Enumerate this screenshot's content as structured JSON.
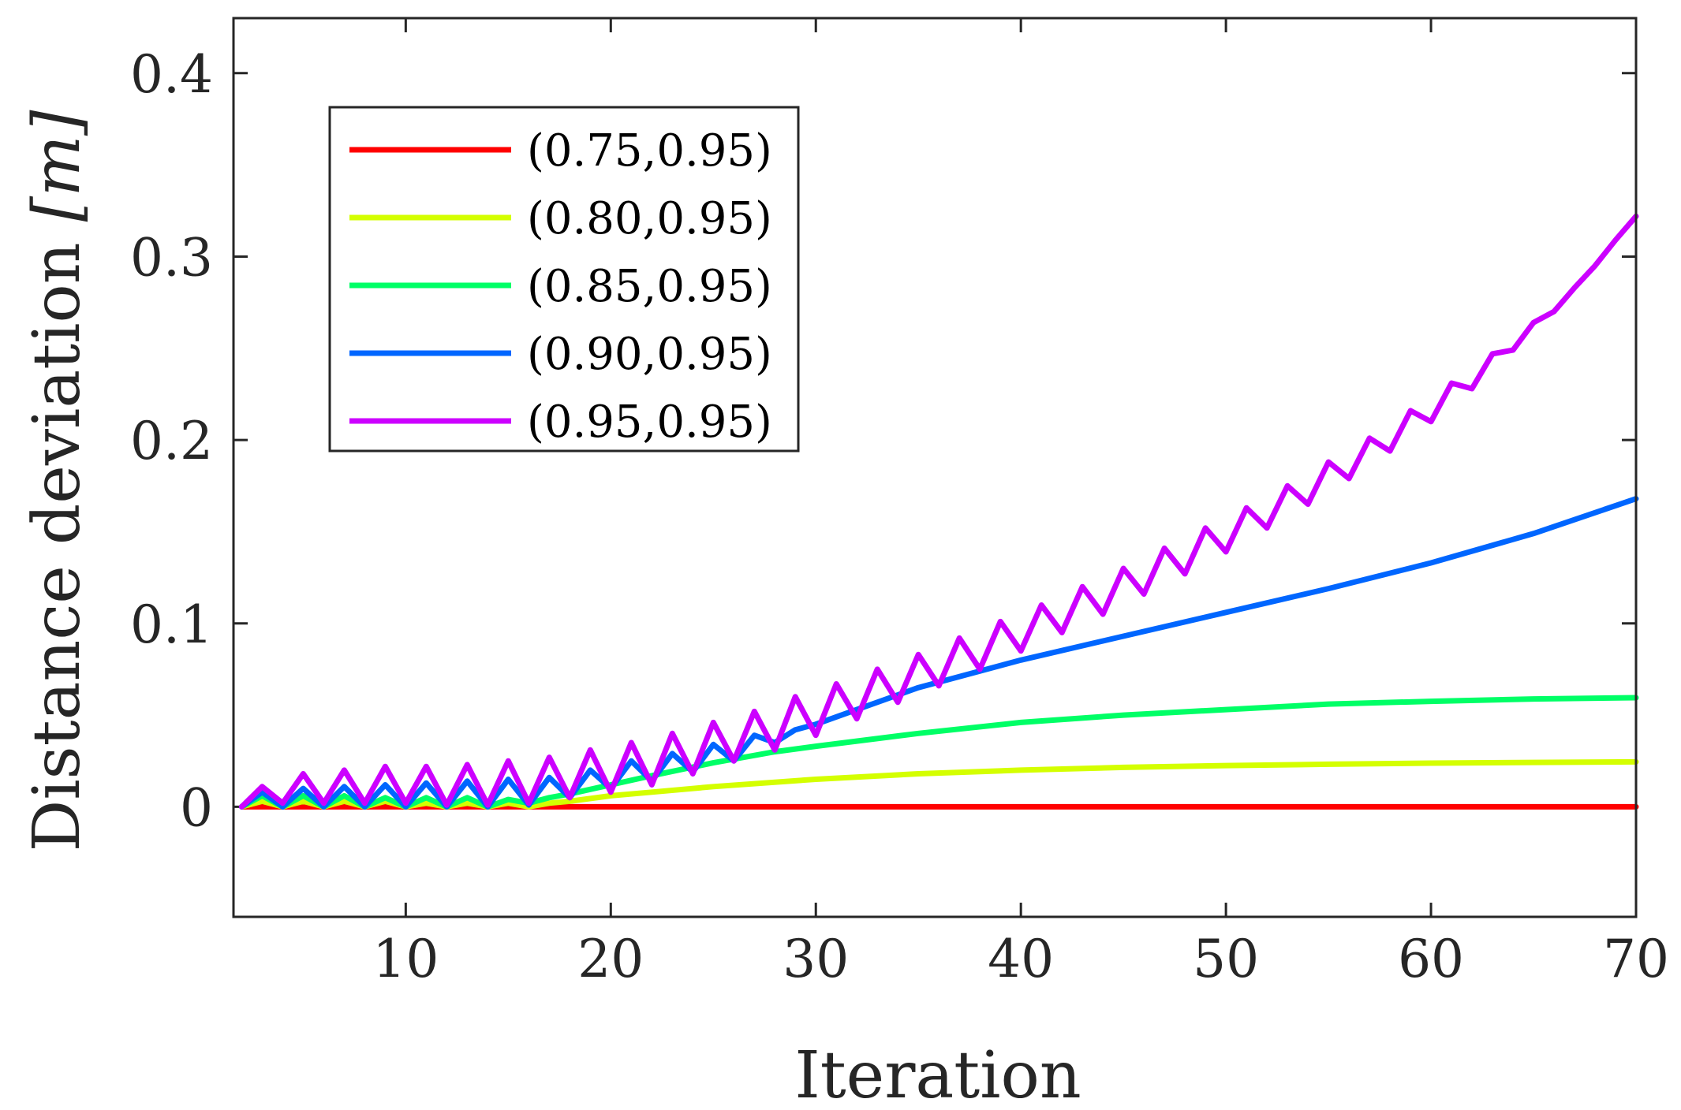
{
  "chart_data": {
    "type": "line",
    "xlabel": "Iteration",
    "ylabel": "Distance deviation [m]",
    "ylabel_main": "Distance deviation ",
    "ylabel_unit": "[m]",
    "xlim": [
      1.6,
      70
    ],
    "ylim": [
      -0.06,
      0.43
    ],
    "xticks": [
      10,
      20,
      30,
      40,
      50,
      60,
      70
    ],
    "xtick_labels": [
      "10",
      "20",
      "30",
      "40",
      "50",
      "60",
      "70"
    ],
    "yticks": [
      0,
      0.1,
      0.2,
      0.3,
      0.4
    ],
    "ytick_labels": [
      "0",
      "0.1",
      "0.2",
      "0.3",
      "0.4"
    ],
    "legend_position": "top-left",
    "series": [
      {
        "name": "(0.75,0.95)",
        "color": "#ff0000",
        "x": [
          2,
          70
        ],
        "y": [
          0,
          0
        ]
      },
      {
        "name": "(0.80,0.95)",
        "color": "#d4ff00",
        "x": [
          2,
          3,
          4,
          5,
          6,
          7,
          8,
          9,
          10,
          11,
          12,
          13,
          14,
          15,
          16,
          17,
          18,
          20,
          22,
          25,
          30,
          35,
          40,
          45,
          50,
          55,
          60,
          65,
          70
        ],
        "y": [
          0,
          0.003,
          0,
          0.003,
          0,
          0.003,
          0,
          0.003,
          0,
          0.002,
          0,
          0.002,
          0,
          0.002,
          0,
          0.002,
          0.003,
          0.006,
          0.008,
          0.011,
          0.015,
          0.018,
          0.02,
          0.0215,
          0.0225,
          0.0232,
          0.0238,
          0.0242,
          0.0245
        ]
      },
      {
        "name": "(0.85,0.95)",
        "color": "#00ff66",
        "x": [
          2,
          3,
          4,
          5,
          6,
          7,
          8,
          9,
          10,
          11,
          12,
          13,
          14,
          15,
          16,
          17,
          18,
          20,
          22,
          25,
          28,
          30,
          35,
          40,
          45,
          50,
          55,
          60,
          65,
          70
        ],
        "y": [
          0,
          0.006,
          0,
          0.006,
          0,
          0.006,
          0,
          0.005,
          0,
          0.005,
          0,
          0.005,
          0,
          0.004,
          0.002,
          0.005,
          0.007,
          0.012,
          0.017,
          0.024,
          0.03,
          0.033,
          0.04,
          0.046,
          0.05,
          0.053,
          0.056,
          0.0575,
          0.0588,
          0.0595
        ]
      },
      {
        "name": "(0.90,0.95)",
        "color": "#0066ff",
        "x": [
          2,
          3,
          4,
          5,
          6,
          7,
          8,
          9,
          10,
          11,
          12,
          13,
          14,
          15,
          16,
          17,
          18,
          19,
          20,
          21,
          22,
          23,
          24,
          25,
          26,
          27,
          28,
          29,
          30,
          32,
          35,
          40,
          45,
          50,
          55,
          60,
          65,
          70
        ],
        "y": [
          0,
          0.008,
          0,
          0.01,
          0,
          0.011,
          0,
          0.012,
          0,
          0.013,
          0,
          0.014,
          0,
          0.015,
          0.001,
          0.016,
          0.005,
          0.02,
          0.01,
          0.025,
          0.014,
          0.029,
          0.019,
          0.034,
          0.025,
          0.039,
          0.035,
          0.042,
          0.045,
          0.053,
          0.065,
          0.08,
          0.093,
          0.106,
          0.119,
          0.133,
          0.149,
          0.168
        ]
      },
      {
        "name": "(0.95,0.95)",
        "color": "#cc00ff",
        "x": [
          2,
          3,
          4,
          5,
          6,
          7,
          8,
          9,
          10,
          11,
          12,
          13,
          14,
          15,
          16,
          17,
          18,
          19,
          20,
          21,
          22,
          23,
          24,
          25,
          26,
          27,
          28,
          29,
          30,
          31,
          32,
          33,
          34,
          35,
          36,
          37,
          38,
          39,
          40,
          41,
          42,
          43,
          44,
          45,
          46,
          47,
          48,
          49,
          50,
          51,
          52,
          53,
          54,
          55,
          56,
          57,
          58,
          59,
          60,
          61,
          62,
          63,
          64,
          65,
          66,
          67,
          68,
          69,
          70
        ],
        "y": [
          0,
          0.011,
          0.002,
          0.018,
          0.002,
          0.02,
          0.002,
          0.022,
          0.002,
          0.022,
          0.001,
          0.023,
          0.001,
          0.025,
          0.002,
          0.027,
          0.005,
          0.031,
          0.008,
          0.035,
          0.012,
          0.04,
          0.018,
          0.046,
          0.025,
          0.052,
          0.031,
          0.06,
          0.039,
          0.067,
          0.048,
          0.075,
          0.057,
          0.083,
          0.066,
          0.092,
          0.075,
          0.101,
          0.085,
          0.11,
          0.095,
          0.12,
          0.105,
          0.13,
          0.116,
          0.141,
          0.127,
          0.152,
          0.139,
          0.163,
          0.152,
          0.175,
          0.165,
          0.188,
          0.179,
          0.201,
          0.194,
          0.216,
          0.21,
          0.231,
          0.228,
          0.247,
          0.249,
          0.264,
          0.27,
          0.283,
          0.295,
          0.309,
          0.322
        ]
      }
    ]
  }
}
